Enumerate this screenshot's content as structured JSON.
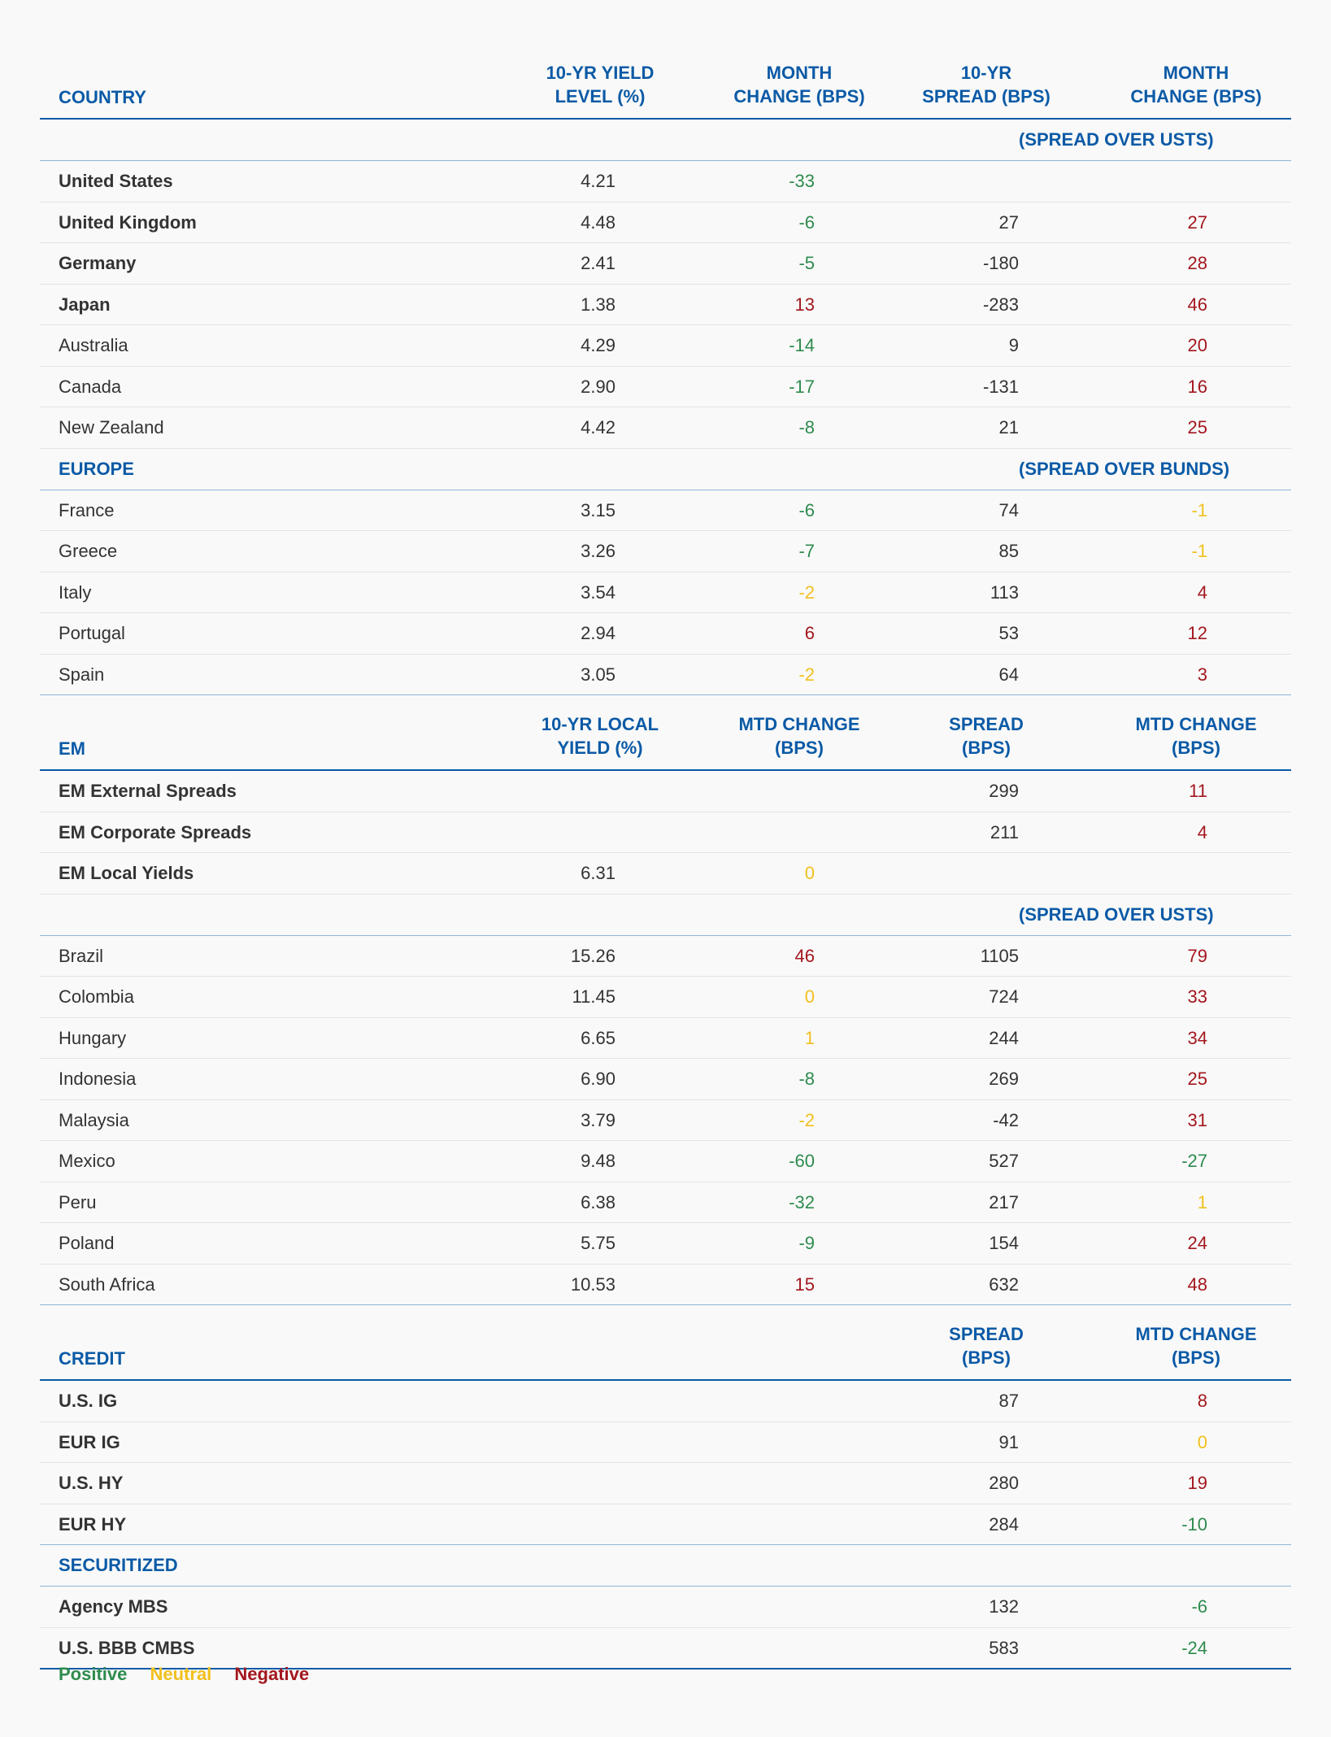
{
  "colors": {
    "positive": "#2e8b4e",
    "neutral": "#f2c01e",
    "negative": "#a3171e",
    "header": "#0b5aa6"
  },
  "blocks": [
    {
      "type": "header",
      "label": "COUNTRY",
      "cols": [
        "10-YR YIELD\nLEVEL (%)",
        "MONTH\nCHANGE (BPS)",
        "10-YR\nSPREAD (BPS)",
        "MONTH\nCHANGE (BPS)"
      ]
    },
    {
      "type": "sub",
      "label": "",
      "right": "(SPREAD OVER USTS)"
    },
    {
      "type": "row",
      "bold": true,
      "cells": [
        "United States",
        "4.21",
        "-33",
        "",
        ""
      ],
      "colors": [
        "",
        "",
        "pos",
        "",
        ""
      ]
    },
    {
      "type": "row",
      "bold": true,
      "cells": [
        "United Kingdom",
        "4.48",
        "-6",
        "27",
        "27"
      ],
      "colors": [
        "",
        "",
        "pos",
        "",
        "neg"
      ]
    },
    {
      "type": "row",
      "bold": true,
      "cells": [
        "Germany",
        "2.41",
        "-5",
        "-180",
        "28"
      ],
      "colors": [
        "",
        "",
        "pos",
        "",
        "neg"
      ]
    },
    {
      "type": "row",
      "bold": true,
      "cells": [
        "Japan",
        "1.38",
        "13",
        "-283",
        "46"
      ],
      "colors": [
        "",
        "",
        "neg",
        "",
        "neg"
      ]
    },
    {
      "type": "row",
      "bold": false,
      "cells": [
        "Australia",
        "4.29",
        "-14",
        "9",
        "20"
      ],
      "colors": [
        "",
        "",
        "pos",
        "",
        "neg"
      ]
    },
    {
      "type": "row",
      "bold": false,
      "cells": [
        "Canada",
        "2.90",
        "-17",
        "-131",
        "16"
      ],
      "colors": [
        "",
        "",
        "pos",
        "",
        "neg"
      ]
    },
    {
      "type": "row",
      "bold": false,
      "cells": [
        "New Zealand",
        "4.42",
        "-8",
        "21",
        "25"
      ],
      "colors": [
        "",
        "",
        "pos",
        "",
        "neg"
      ]
    },
    {
      "type": "sub",
      "label": "EUROPE",
      "right": "(SPREAD OVER BUNDS)"
    },
    {
      "type": "row",
      "bold": false,
      "cells": [
        "France",
        "3.15",
        "-6",
        "74",
        "-1"
      ],
      "colors": [
        "",
        "",
        "pos",
        "",
        "neu"
      ]
    },
    {
      "type": "row",
      "bold": false,
      "cells": [
        "Greece",
        "3.26",
        "-7",
        "85",
        "-1"
      ],
      "colors": [
        "",
        "",
        "pos",
        "",
        "neu"
      ]
    },
    {
      "type": "row",
      "bold": false,
      "cells": [
        "Italy",
        "3.54",
        "-2",
        "113",
        "4"
      ],
      "colors": [
        "",
        "",
        "neu",
        "",
        "neg"
      ]
    },
    {
      "type": "row",
      "bold": false,
      "cells": [
        "Portugal",
        "2.94",
        "6",
        "53",
        "12"
      ],
      "colors": [
        "",
        "",
        "neg",
        "",
        "neg"
      ]
    },
    {
      "type": "row",
      "bold": false,
      "cells": [
        "Spain",
        "3.05",
        "-2",
        "64",
        "3"
      ],
      "colors": [
        "",
        "",
        "neu",
        "",
        "neg"
      ]
    },
    {
      "type": "header",
      "label": "EM",
      "cols": [
        "10-YR LOCAL\nYIELD (%)",
        "MTD CHANGE\n(BPS)",
        "SPREAD\n(BPS)",
        "MTD CHANGE\n(BPS)"
      ],
      "top": true
    },
    {
      "type": "row",
      "bold": true,
      "cells": [
        "EM External Spreads",
        "",
        "",
        "299",
        "11"
      ],
      "colors": [
        "",
        "",
        "",
        "",
        "neg"
      ]
    },
    {
      "type": "row",
      "bold": true,
      "cells": [
        "EM Corporate Spreads",
        "",
        "",
        "211",
        "4"
      ],
      "colors": [
        "",
        "",
        "",
        "",
        "neg"
      ]
    },
    {
      "type": "row",
      "bold": true,
      "cells": [
        "EM Local Yields",
        "6.31",
        "0",
        "",
        ""
      ],
      "colors": [
        "",
        "",
        "neu",
        "",
        ""
      ]
    },
    {
      "type": "sub",
      "label": "",
      "right": "(SPREAD OVER USTS)"
    },
    {
      "type": "row",
      "bold": false,
      "cells": [
        "Brazil",
        "15.26",
        "46",
        "1105",
        "79"
      ],
      "colors": [
        "",
        "",
        "neg",
        "",
        "neg"
      ]
    },
    {
      "type": "row",
      "bold": false,
      "cells": [
        "Colombia",
        "11.45",
        "0",
        "724",
        "33"
      ],
      "colors": [
        "",
        "",
        "neu",
        "",
        "neg"
      ]
    },
    {
      "type": "row",
      "bold": false,
      "cells": [
        "Hungary",
        "6.65",
        "1",
        "244",
        "34"
      ],
      "colors": [
        "",
        "",
        "neu",
        "",
        "neg"
      ]
    },
    {
      "type": "row",
      "bold": false,
      "cells": [
        "Indonesia",
        "6.90",
        "-8",
        "269",
        "25"
      ],
      "colors": [
        "",
        "",
        "pos",
        "",
        "neg"
      ]
    },
    {
      "type": "row",
      "bold": false,
      "cells": [
        "Malaysia",
        "3.79",
        "-2",
        "-42",
        "31"
      ],
      "colors": [
        "",
        "",
        "neu",
        "",
        "neg"
      ]
    },
    {
      "type": "row",
      "bold": false,
      "cells": [
        "Mexico",
        "9.48",
        "-60",
        "527",
        "-27"
      ],
      "colors": [
        "",
        "",
        "pos",
        "",
        "pos"
      ]
    },
    {
      "type": "row",
      "bold": false,
      "cells": [
        "Peru",
        "6.38",
        "-32",
        "217",
        "1"
      ],
      "colors": [
        "",
        "",
        "pos",
        "",
        "neu"
      ]
    },
    {
      "type": "row",
      "bold": false,
      "cells": [
        "Poland",
        "5.75",
        "-9",
        "154",
        "24"
      ],
      "colors": [
        "",
        "",
        "pos",
        "",
        "neg"
      ]
    },
    {
      "type": "row",
      "bold": false,
      "cells": [
        "South Africa",
        "10.53",
        "15",
        "632",
        "48"
      ],
      "colors": [
        "",
        "",
        "neg",
        "",
        "neg"
      ]
    },
    {
      "type": "header",
      "label": "CREDIT",
      "cols": [
        "",
        "",
        "SPREAD\n(BPS)",
        "MTD CHANGE\n(BPS)"
      ],
      "top": true
    },
    {
      "type": "row",
      "bold": true,
      "cells": [
        "U.S. IG",
        "",
        "",
        "87",
        "8"
      ],
      "colors": [
        "",
        "",
        "",
        "",
        "neg"
      ]
    },
    {
      "type": "row",
      "bold": true,
      "cells": [
        "EUR IG",
        "",
        "",
        "91",
        "0"
      ],
      "colors": [
        "",
        "",
        "",
        "",
        "neu"
      ]
    },
    {
      "type": "row",
      "bold": true,
      "cells": [
        "U.S. HY",
        "",
        "",
        "280",
        "19"
      ],
      "colors": [
        "",
        "",
        "",
        "",
        "neg"
      ]
    },
    {
      "type": "row",
      "bold": true,
      "cells": [
        "EUR HY",
        "",
        "",
        "284",
        "-10"
      ],
      "colors": [
        "",
        "",
        "",
        "",
        "pos"
      ]
    },
    {
      "type": "sub",
      "label": "SECURITIZED",
      "right": "",
      "top": true
    },
    {
      "type": "row",
      "bold": true,
      "cells": [
        "Agency MBS",
        "",
        "",
        "132",
        "-6"
      ],
      "colors": [
        "",
        "",
        "",
        "",
        "pos"
      ]
    },
    {
      "type": "row",
      "bold": true,
      "cells": [
        "U.S. BBB CMBS",
        "",
        "",
        "583",
        "-24"
      ],
      "colors": [
        "",
        "",
        "",
        "",
        "pos"
      ]
    }
  ],
  "legend": {
    "positive": "Positive",
    "neutral": "Neutral",
    "negative": "Negative"
  }
}
